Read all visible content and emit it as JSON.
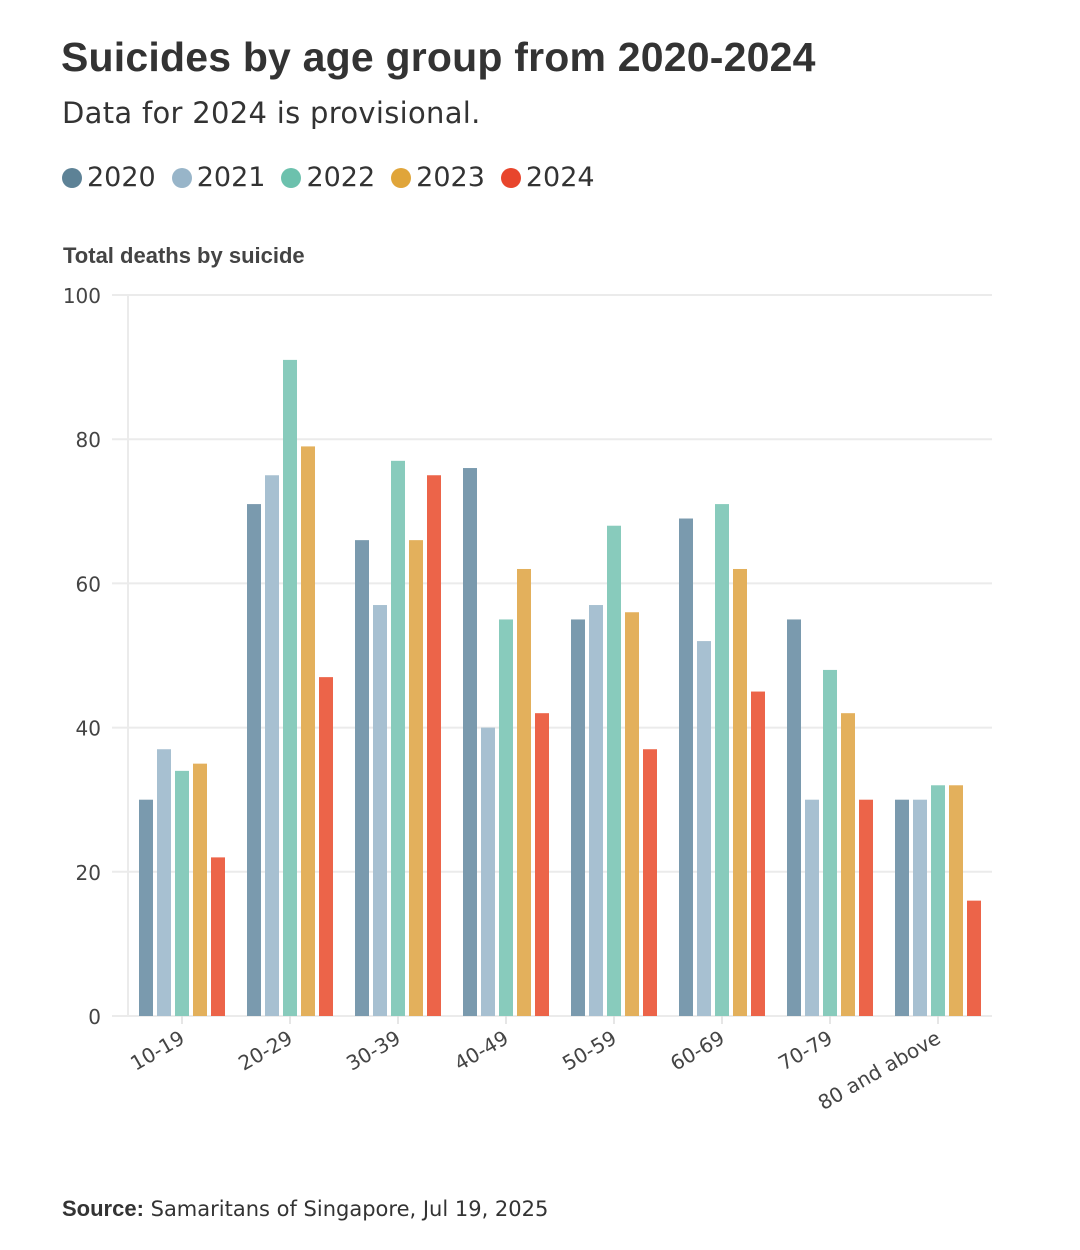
{
  "header": {
    "title": "Suicides by age group from 2020-2024",
    "subtitle": "Data for 2024 is provisional."
  },
  "source": {
    "label": "Source:",
    "text": "Samaritans of Singapore, Jul 19, 2025"
  },
  "chart_data": {
    "type": "bar",
    "title": "Suicides by age group from 2020-2024",
    "subtitle": "Data for 2024 is provisional.",
    "xlabel": "",
    "ylabel": "Total deaths by suicide",
    "ylim": [
      0,
      100
    ],
    "yticks": [
      0,
      20,
      40,
      60,
      80,
      100
    ],
    "grid": true,
    "legend_position": "top-left",
    "categories": [
      "10-19",
      "20-29",
      "30-39",
      "40-49",
      "50-59",
      "60-69",
      "70-79",
      "80 and above"
    ],
    "series": [
      {
        "name": "2020",
        "color": "#7a9aae",
        "legend_color": "#5d8296",
        "values": [
          30,
          71,
          66,
          76,
          55,
          69,
          55,
          30
        ]
      },
      {
        "name": "2021",
        "color": "#a7c0d1",
        "legend_color": "#98b5c9",
        "values": [
          37,
          75,
          57,
          40,
          57,
          52,
          30,
          30
        ]
      },
      {
        "name": "2022",
        "color": "#88cbbc",
        "legend_color": "#6cc1ad",
        "values": [
          34,
          91,
          77,
          55,
          68,
          71,
          48,
          32
        ]
      },
      {
        "name": "2023",
        "color": "#e3b05c",
        "legend_color": "#e0a53a",
        "values": [
          35,
          79,
          66,
          62,
          56,
          62,
          42,
          32
        ]
      },
      {
        "name": "2024",
        "color": "#ec6449",
        "legend_color": "#e8452c",
        "values": [
          22,
          47,
          75,
          42,
          37,
          45,
          30,
          16
        ]
      }
    ]
  }
}
